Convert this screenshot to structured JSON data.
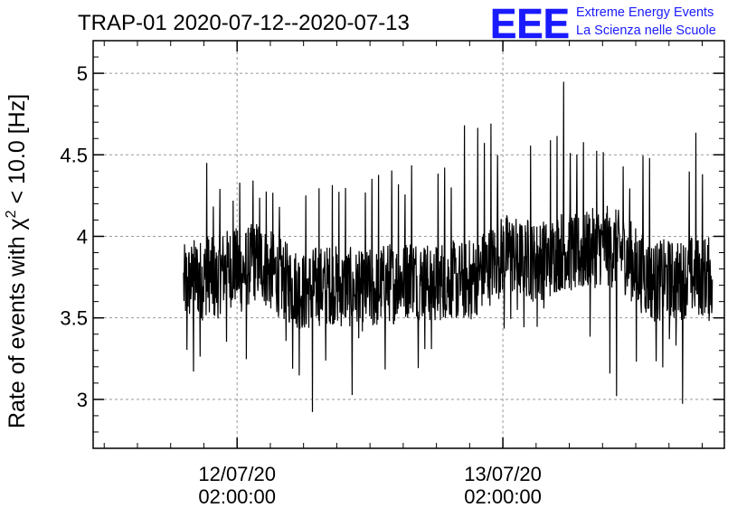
{
  "chart_data": {
    "type": "line",
    "title": "TRAP-01 2020-07-12--2020-07-13",
    "ylabel": "Rate of events with χ² < 10.0 [Hz]",
    "ylabel_prefix": "Rate of events with χ",
    "ylabel_sup": "2",
    "ylabel_suffix": " < 10.0 [Hz]",
    "xlabel": "",
    "ylim": [
      2.7,
      5.2
    ],
    "xlim": [
      "2020-07-11 13:00",
      "2020-07-13 22:00"
    ],
    "yticks": [
      3,
      3.5,
      4,
      4.5,
      5
    ],
    "ytick_labels": [
      "3",
      "3.5",
      "4",
      "4.5",
      "5"
    ],
    "xticks": [
      "2020-07-12 02:00",
      "2020-07-13 02:00"
    ],
    "xtick_labels": [
      {
        "date": "12/07/20",
        "time": "02:00:00"
      },
      {
        "date": "13/07/20",
        "time": "02:00:00"
      }
    ],
    "grid": true,
    "legend": "none",
    "series": [
      {
        "color": "#000000",
        "x_start": "2020-07-11 21:10",
        "x_end": "2020-07-13 20:55",
        "values": [
          3.7,
          3.72,
          3.75,
          3.73,
          3.78,
          3.71,
          3.79,
          3.8,
          3.82,
          3.77,
          3.81,
          3.84,
          3.86,
          3.8,
          3.78,
          3.75,
          3.72,
          3.7,
          3.68,
          3.66,
          3.68,
          3.7,
          3.69,
          3.71,
          3.7,
          3.68,
          3.69,
          3.67,
          3.66,
          3.68,
          3.67,
          3.7,
          3.72,
          3.71,
          3.73,
          3.74,
          3.76,
          3.73,
          3.72,
          3.71,
          3.72,
          3.74,
          3.73,
          3.72,
          3.73,
          3.74,
          3.76,
          3.79,
          3.82,
          3.85,
          3.88,
          3.9,
          3.88,
          3.86,
          3.87,
          3.84,
          3.86,
          3.85,
          3.88,
          3.91,
          3.92,
          3.9,
          3.89,
          3.9,
          3.92,
          3.94,
          3.95,
          3.93,
          3.92,
          3.9,
          3.86,
          3.82,
          3.77,
          3.74,
          3.72,
          3.73,
          3.74,
          3.72,
          3.73,
          3.75,
          3.76,
          3.75,
          3.76,
          3.74
        ],
        "highs": [
          4.27,
          4.54,
          4.2,
          4.2,
          4.47,
          4.2,
          4.3,
          4.38,
          4.24,
          4.35,
          4.22,
          4.36,
          4.26,
          4.29,
          4.28,
          4.21,
          4.23,
          4.28,
          4.31,
          4.26,
          4.32,
          4.3,
          4.38,
          4.33,
          4.3,
          4.32,
          4.35,
          4.34,
          4.38,
          4.29,
          4.36,
          4.4,
          4.42,
          4.42,
          4.32,
          4.26,
          4.45,
          4.38,
          4.45,
          4.31,
          4.41,
          4.44,
          4.3,
          4.5,
          4.71,
          4.53,
          4.68,
          4.59,
          4.71,
          4.5,
          4.69,
          4.53,
          4.53,
          4.51,
          4.56,
          4.48,
          4.51,
          4.58,
          4.61,
          4.64,
          4.96,
          4.52,
          4.53,
          4.59,
          4.54,
          4.55,
          4.54,
          4.48,
          4.54,
          4.44,
          4.31,
          4.23,
          4.5,
          4.49,
          4.34,
          4.36,
          4.42,
          4.27,
          4.32,
          4.42,
          4.64,
          4.4,
          4.6,
          4.3
        ],
        "lows": [
          3.5,
          3.28,
          3.16,
          3.25,
          3.38,
          3.0,
          3.37,
          3.35,
          3.24,
          3.29,
          3.22,
          3.31,
          3.29,
          3.19,
          3.25,
          3.2,
          3.33,
          3.18,
          3.14,
          3.29,
          2.91,
          3.0,
          3.22,
          3.07,
          3.28,
          3.16,
          3.0,
          3.36,
          3.27,
          3.23,
          3.35,
          3.36,
          3.16,
          3.2,
          3.15,
          3.15,
          3.36,
          3.17,
          3.3,
          3.3,
          3.23,
          3.4,
          3.46,
          3.5,
          3.46,
          3.47,
          3.43,
          3.44,
          3.4,
          3.46,
          3.42,
          3.48,
          3.52,
          3.44,
          3.52,
          3.48,
          3.43,
          3.54,
          3.46,
          3.58,
          3.47,
          3.53,
          3.46,
          3.42,
          3.36,
          3.4,
          3.4,
          3.13,
          3.0,
          3.12,
          3.25,
          3.22,
          3.16,
          3.24,
          3.23,
          3.17,
          3.36,
          3.31,
          2.97,
          3.44,
          3.32,
          3.39,
          3.47,
          3.3
        ]
      }
    ]
  },
  "logo": {
    "mark": "EEE",
    "line1": "Extreme Energy Events",
    "line2": "La Scienza nelle Scuole",
    "color": "#1a1aff"
  }
}
